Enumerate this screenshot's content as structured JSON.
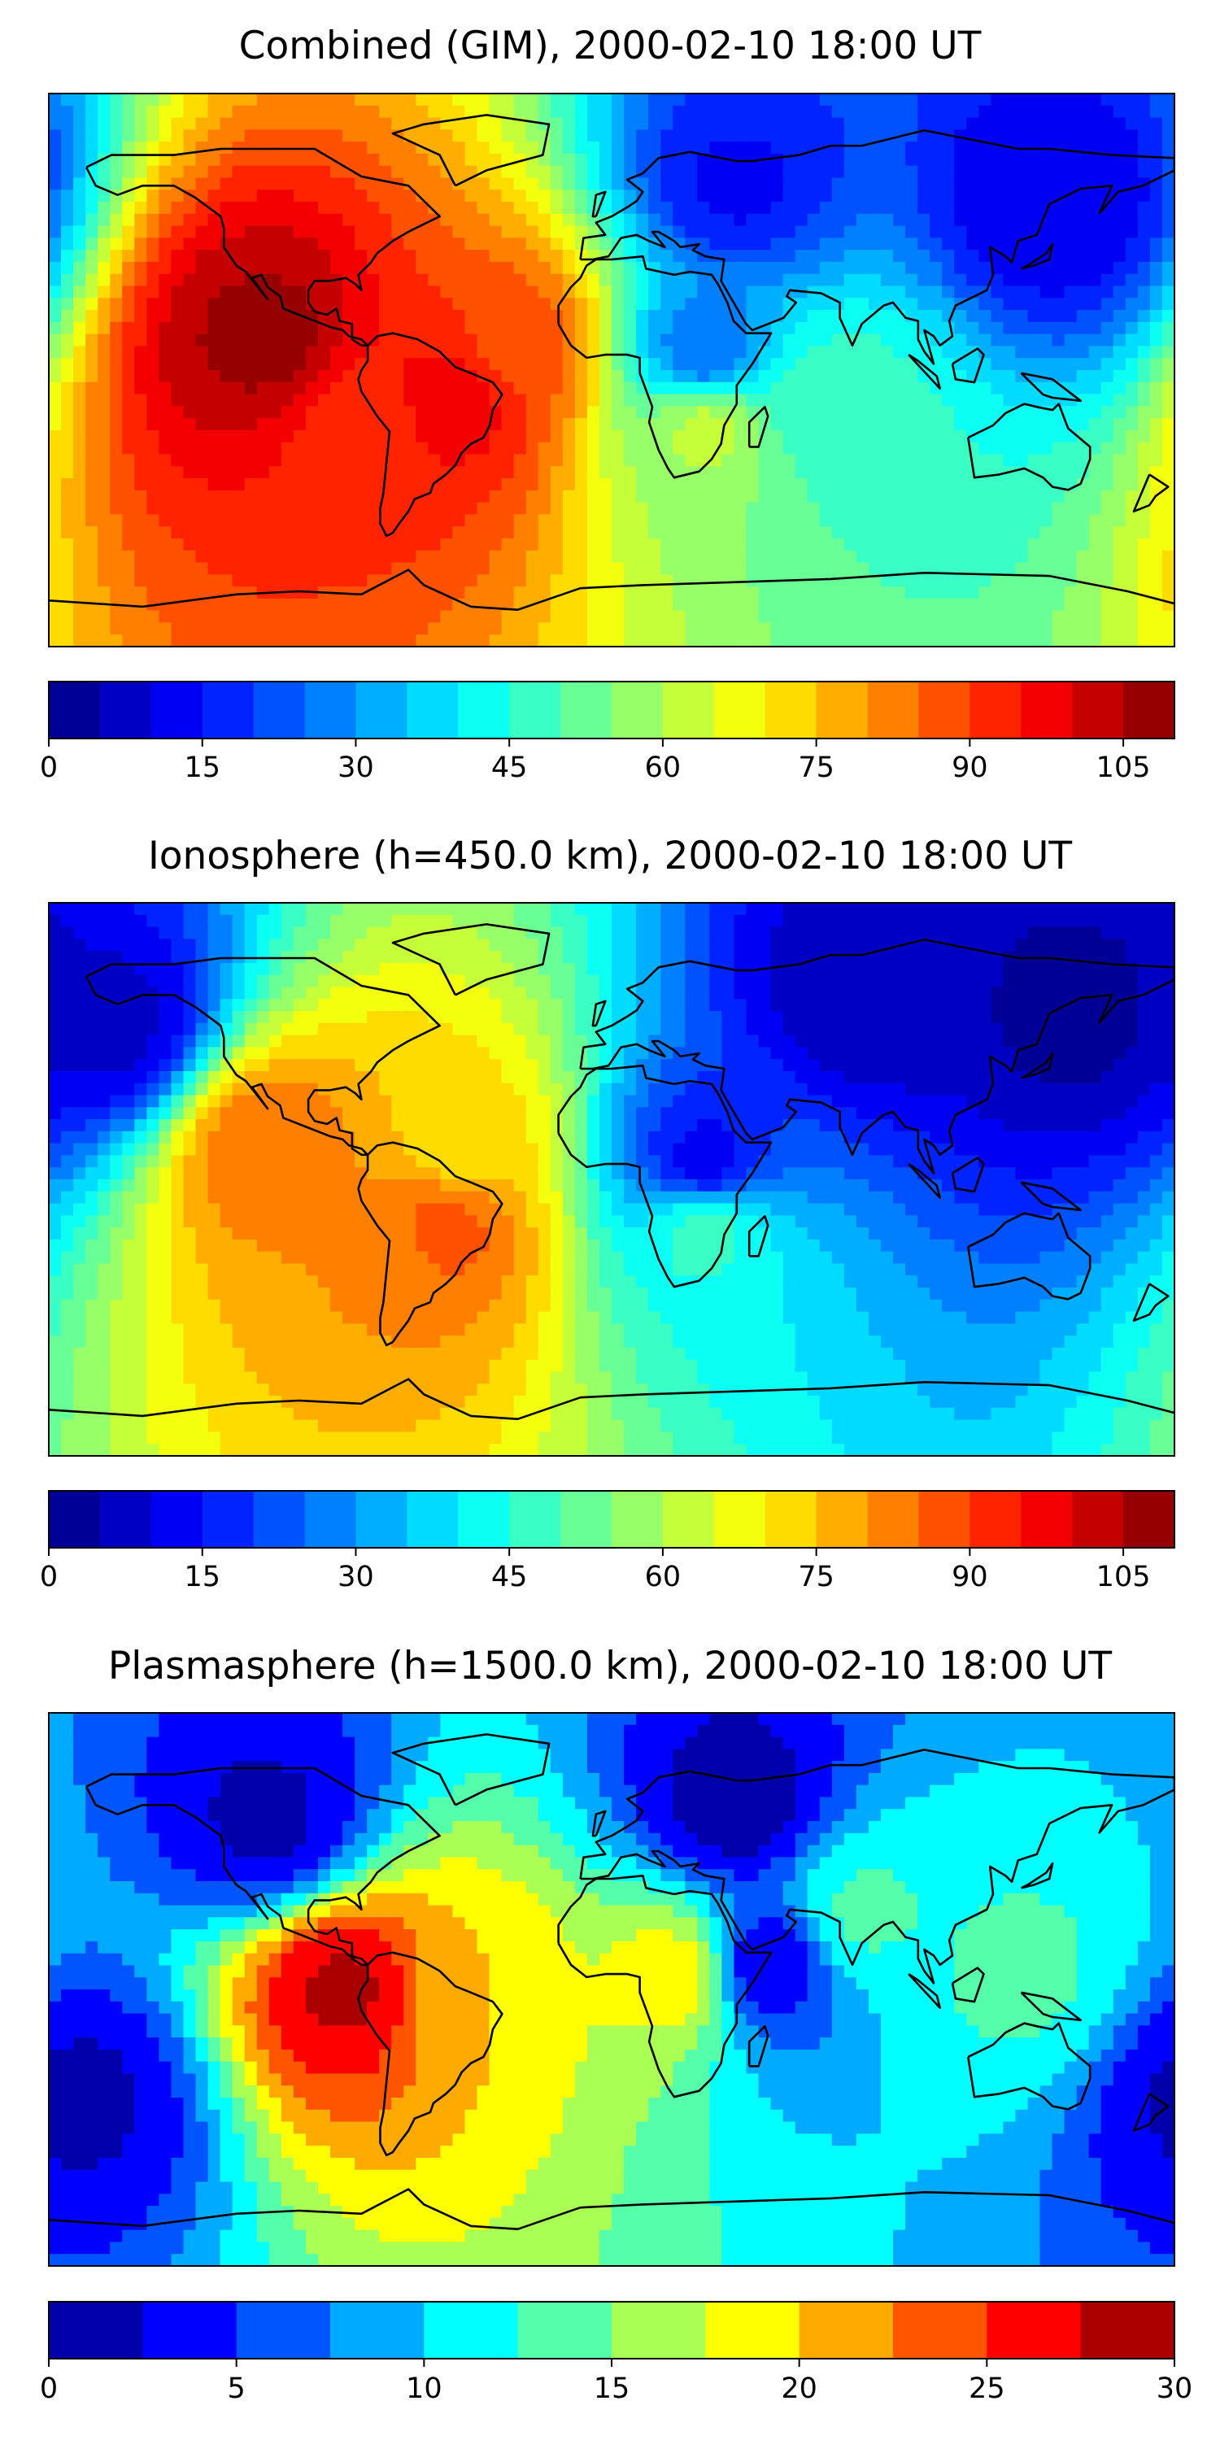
{
  "panels": [
    {
      "title": "Combined (GIM), 2000-02-10 18:00 UT",
      "colorbar": {
        "vmin": 0,
        "vmax": 110,
        "step": 5,
        "ticks": [
          0,
          15,
          30,
          45,
          60,
          75,
          90,
          105
        ],
        "tick_labels": [
          "0",
          "15",
          "30",
          "45",
          "60",
          "75",
          "90",
          "105"
        ]
      }
    },
    {
      "title": "Ionosphere  (h=450.0 km), 2000-02-10 18:00 UT",
      "colorbar": {
        "vmin": 0,
        "vmax": 110,
        "step": 5,
        "ticks": [
          0,
          15,
          30,
          45,
          60,
          75,
          90,
          105
        ],
        "tick_labels": [
          "0",
          "15",
          "30",
          "45",
          "60",
          "75",
          "90",
          "105"
        ]
      }
    },
    {
      "title": "Plasmasphere (h=1500.0 km), 2000-02-10 18:00 UT",
      "colorbar": {
        "vmin": 0,
        "vmax": 30,
        "step": 2.5,
        "ticks": [
          0,
          5,
          10,
          15,
          20,
          25,
          30
        ],
        "tick_labels": [
          "0",
          "5",
          "10",
          "15",
          "20",
          "25",
          "30"
        ]
      }
    }
  ],
  "chart_data": [
    {
      "type": "heatmap",
      "title": "Combined (GIM), 2000-02-10 18:00 UT",
      "projection": "plate-carree world map with coastlines",
      "colormap": "jet",
      "levels": {
        "min": 0,
        "max": 110,
        "step": 5
      },
      "colorbar_ticks": [
        0,
        15,
        30,
        45,
        60,
        75,
        90,
        105
      ],
      "hotspots": [
        {
          "lon": -110,
          "lat": 10,
          "value": 107
        },
        {
          "lon": -50,
          "lat": -10,
          "value": 98
        },
        {
          "lon": -80,
          "lat": -18,
          "value": 92
        },
        {
          "lon": -30,
          "lat": 8,
          "value": 88
        },
        {
          "lon": 30,
          "lat": -18,
          "value": 62
        },
        {
          "lon": 70,
          "lat": -12,
          "value": 48
        },
        {
          "lon": 140,
          "lat": 55,
          "value": 10
        },
        {
          "lon": 40,
          "lat": 60,
          "value": 14
        },
        {
          "lon": 30,
          "lat": 5,
          "value": 25
        }
      ]
    },
    {
      "type": "heatmap",
      "title": "Ionosphere  (h=450.0 km), 2000-02-10 18:00 UT",
      "projection": "plate-carree world map with coastlines",
      "colormap": "jet",
      "levels": {
        "min": 0,
        "max": 110,
        "step": 5
      },
      "colorbar_ticks": [
        0,
        15,
        30,
        45,
        60,
        75,
        90,
        105
      ],
      "hotspots": [
        {
          "lon": -110,
          "lat": 10,
          "value": 85
        },
        {
          "lon": -55,
          "lat": -15,
          "value": 88
        },
        {
          "lon": -75,
          "lat": -20,
          "value": 80
        },
        {
          "lon": -50,
          "lat": 10,
          "value": 72
        },
        {
          "lon": 30,
          "lat": -15,
          "value": 48
        },
        {
          "lon": 30,
          "lat": 5,
          "value": 12
        },
        {
          "lon": 150,
          "lat": 55,
          "value": 3
        },
        {
          "lon": 80,
          "lat": 60,
          "value": 6
        },
        {
          "lon": -160,
          "lat": 50,
          "value": 8
        }
      ]
    },
    {
      "type": "heatmap",
      "title": "Plasmasphere (h=1500.0 km), 2000-02-10 18:00 UT",
      "projection": "plate-carree world map with coastlines",
      "colormap": "jet",
      "levels": {
        "min": 0,
        "max": 30,
        "step": 2.5
      },
      "colorbar_ticks": [
        0,
        5,
        10,
        15,
        20,
        25,
        30
      ],
      "hotspots": [
        {
          "lon": -85,
          "lat": 0,
          "value": 28
        },
        {
          "lon": -45,
          "lat": 0,
          "value": 20
        },
        {
          "lon": 20,
          "lat": 5,
          "value": 19
        },
        {
          "lon": 50,
          "lat": 8,
          "value": 3
        },
        {
          "lon": 80,
          "lat": 25,
          "value": 13
        },
        {
          "lon": 130,
          "lat": 5,
          "value": 13
        },
        {
          "lon": -110,
          "lat": 55,
          "value": 2
        },
        {
          "lon": 40,
          "lat": 60,
          "value": 1
        },
        {
          "lon": -170,
          "lat": -35,
          "value": 2
        }
      ]
    }
  ]
}
